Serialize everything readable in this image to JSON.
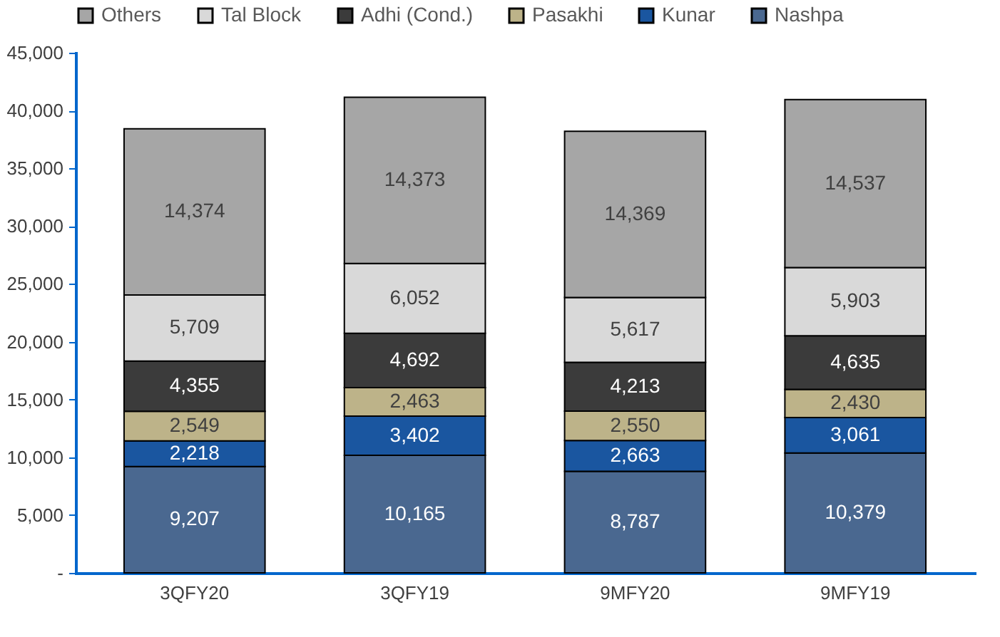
{
  "chart_data": {
    "type": "bar",
    "stacked": true,
    "categories": [
      "3QFY20",
      "3QFY19",
      "9MFY20",
      "9MFY19"
    ],
    "series": [
      {
        "name": "Nashpa",
        "color": "#4a6890",
        "values": [
          9207,
          10165,
          8787,
          10379
        ],
        "value_labels": [
          "9,207",
          "10,165",
          "8,787",
          "10,379"
        ]
      },
      {
        "name": "Kunar",
        "color": "#1a56a0",
        "values": [
          2218,
          3402,
          2663,
          3061
        ],
        "value_labels": [
          "2,218",
          "3,402",
          "2,663",
          "3,061"
        ]
      },
      {
        "name": "Pasakhi",
        "color": "#bdb389",
        "values": [
          2549,
          2463,
          2550,
          2430
        ],
        "value_labels": [
          "2,549",
          "2,463",
          "2,550",
          "2,430"
        ]
      },
      {
        "name": "Adhi (Cond.)",
        "color": "#3b3b3b",
        "values": [
          4355,
          4692,
          4213,
          4635
        ],
        "value_labels": [
          "4,355",
          "4,692",
          "4,213",
          "4,635"
        ]
      },
      {
        "name": "Tal Block",
        "color": "#d9d9d9",
        "values": [
          5709,
          6052,
          5617,
          5903
        ],
        "value_labels": [
          "5,709",
          "6,052",
          "5,617",
          "5,903"
        ]
      },
      {
        "name": "Others",
        "color": "#a6a6a6",
        "values": [
          14374,
          14373,
          14369,
          14537
        ],
        "value_labels": [
          "14,374",
          "14,373",
          "14,369",
          "14,537"
        ]
      }
    ],
    "ylim": [
      0,
      45000
    ],
    "yticks": [
      {
        "value": 0,
        "label": "-"
      },
      {
        "value": 5000,
        "label": "5,000"
      },
      {
        "value": 10000,
        "label": "10,000"
      },
      {
        "value": 15000,
        "label": "15,000"
      },
      {
        "value": 20000,
        "label": "20,000"
      },
      {
        "value": 25000,
        "label": "25,000"
      },
      {
        "value": 30000,
        "label": "30,000"
      },
      {
        "value": 35000,
        "label": "35,000"
      },
      {
        "value": 40000,
        "label": "40,000"
      },
      {
        "value": 45000,
        "label": "45,000"
      }
    ],
    "legend": "top",
    "grid": false
  }
}
